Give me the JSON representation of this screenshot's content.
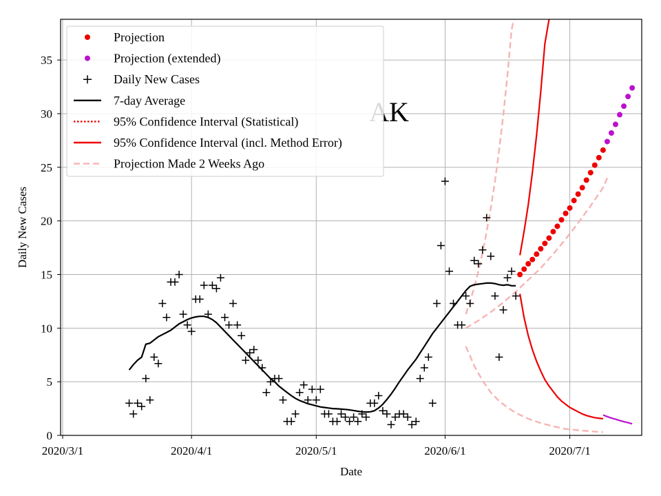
{
  "chart_data": {
    "type": "line",
    "state_label": "AK",
    "xlabel": "Date",
    "ylabel": "Daily New Cases",
    "xlim": [
      0,
      137
    ],
    "ylim": [
      0,
      38.8
    ],
    "grid": true,
    "legend_position": "top-left",
    "x_ticks": [
      {
        "value": 0,
        "label": "2020/3/1"
      },
      {
        "value": 31,
        "label": "2020/4/1"
      },
      {
        "value": 61,
        "label": "2020/5/1"
      },
      {
        "value": 92,
        "label": "2020/6/1"
      },
      {
        "value": 122,
        "label": "2020/7/1"
      }
    ],
    "y_ticks": [
      0,
      5,
      10,
      15,
      20,
      25,
      30,
      35
    ],
    "legend": [
      {
        "label": "Projection",
        "kind": "dot",
        "color": "#ee0000"
      },
      {
        "label": "Projection (extended)",
        "kind": "dot",
        "color": "#bb11cc"
      },
      {
        "label": "Daily New Cases",
        "kind": "plus",
        "color": "#000000"
      },
      {
        "label": "7-day Average",
        "kind": "line",
        "color": "#000000"
      },
      {
        "label": "95% Confidence Interval (Statistical)",
        "kind": "dotted",
        "color": "#ee0000"
      },
      {
        "label": "95% Confidence Interval (incl. Method Error)",
        "kind": "line",
        "color": "#ee0000"
      },
      {
        "label": "Projection Made 2 Weeks Ago",
        "kind": "dashed",
        "color": "#f7b3b3"
      }
    ],
    "daily_new_cases": [
      [
        16,
        3.0
      ],
      [
        17,
        2.0
      ],
      [
        18,
        3.0
      ],
      [
        19,
        2.7
      ],
      [
        20,
        5.3
      ],
      [
        21,
        3.3
      ],
      [
        22,
        7.3
      ],
      [
        23,
        6.7
      ],
      [
        24,
        12.3
      ],
      [
        25,
        11.0
      ],
      [
        26,
        14.3
      ],
      [
        27,
        14.3
      ],
      [
        28,
        15.0
      ],
      [
        29,
        11.3
      ],
      [
        30,
        10.3
      ],
      [
        31,
        9.7
      ],
      [
        32,
        12.7
      ],
      [
        33,
        12.7
      ],
      [
        34,
        14.0
      ],
      [
        35,
        11.3
      ],
      [
        36,
        14.0
      ],
      [
        37,
        13.7
      ],
      [
        38,
        14.7
      ],
      [
        39,
        11.0
      ],
      [
        40,
        10.3
      ],
      [
        41,
        12.3
      ],
      [
        42,
        10.3
      ],
      [
        43,
        9.3
      ],
      [
        44,
        7.0
      ],
      [
        45,
        7.7
      ],
      [
        46,
        8.0
      ],
      [
        47,
        7.0
      ],
      [
        48,
        6.3
      ],
      [
        49,
        4.0
      ],
      [
        50,
        5.0
      ],
      [
        51,
        5.3
      ],
      [
        52,
        5.3
      ],
      [
        53,
        3.3
      ],
      [
        54,
        1.3
      ],
      [
        55,
        1.3
      ],
      [
        56,
        2.0
      ],
      [
        57,
        4.0
      ],
      [
        58,
        4.7
      ],
      [
        59,
        3.3
      ],
      [
        60,
        4.3
      ],
      [
        61,
        3.3
      ],
      [
        62,
        4.3
      ],
      [
        63,
        2.0
      ],
      [
        64,
        2.0
      ],
      [
        65,
        1.3
      ],
      [
        66,
        1.3
      ],
      [
        67,
        2.0
      ],
      [
        68,
        1.7
      ],
      [
        69,
        1.3
      ],
      [
        70,
        1.7
      ],
      [
        71,
        1.3
      ],
      [
        72,
        2.0
      ],
      [
        73,
        1.7
      ],
      [
        74,
        3.0
      ],
      [
        75,
        3.0
      ],
      [
        76,
        3.7
      ],
      [
        77,
        2.3
      ],
      [
        78,
        2.0
      ],
      [
        79,
        1.0
      ],
      [
        80,
        1.7
      ],
      [
        81,
        2.0
      ],
      [
        82,
        2.0
      ],
      [
        83,
        1.7
      ],
      [
        84,
        1.0
      ],
      [
        85,
        1.3
      ],
      [
        86,
        5.3
      ],
      [
        87,
        6.3
      ],
      [
        88,
        7.3
      ],
      [
        89,
        3.0
      ],
      [
        90,
        12.3
      ],
      [
        91,
        17.7
      ],
      [
        92,
        23.7
      ],
      [
        93,
        15.3
      ],
      [
        94,
        12.3
      ],
      [
        95,
        10.3
      ],
      [
        96,
        10.3
      ],
      [
        97,
        13.0
      ],
      [
        98,
        12.3
      ],
      [
        99,
        16.3
      ],
      [
        100,
        16.0
      ],
      [
        101,
        17.3
      ],
      [
        102,
        20.3
      ],
      [
        103,
        16.7
      ],
      [
        104,
        13.0
      ],
      [
        105,
        7.3
      ],
      [
        106,
        11.7
      ],
      [
        107,
        14.7
      ],
      [
        108,
        15.3
      ],
      [
        109,
        13.0
      ]
    ],
    "seven_day_average": [
      [
        16,
        6.1
      ],
      [
        17,
        6.6
      ],
      [
        18,
        7.0
      ],
      [
        19,
        7.3
      ],
      [
        20,
        8.5
      ],
      [
        21,
        8.6
      ],
      [
        22,
        8.9
      ],
      [
        23,
        9.2
      ],
      [
        24,
        9.4
      ],
      [
        25,
        9.6
      ],
      [
        26,
        9.8
      ],
      [
        27,
        10.1
      ],
      [
        28,
        10.4
      ],
      [
        29,
        10.6
      ],
      [
        30,
        10.8
      ],
      [
        31,
        10.95
      ],
      [
        32,
        11.05
      ],
      [
        33,
        11.1
      ],
      [
        34,
        11.1
      ],
      [
        35,
        11.0
      ],
      [
        36,
        10.8
      ],
      [
        37,
        10.5
      ],
      [
        38,
        10.1
      ],
      [
        39,
        9.7
      ],
      [
        40,
        9.3
      ],
      [
        41,
        8.9
      ],
      [
        42,
        8.5
      ],
      [
        43,
        8.1
      ],
      [
        44,
        7.7
      ],
      [
        45,
        7.3
      ],
      [
        46,
        6.9
      ],
      [
        47,
        6.5
      ],
      [
        48,
        6.1
      ],
      [
        49,
        5.7
      ],
      [
        50,
        5.3
      ],
      [
        51,
        5.0
      ],
      [
        52,
        4.6
      ],
      [
        53,
        4.3
      ],
      [
        54,
        4.0
      ],
      [
        55,
        3.7
      ],
      [
        56,
        3.45
      ],
      [
        57,
        3.25
      ],
      [
        58,
        3.1
      ],
      [
        59,
        2.95
      ],
      [
        60,
        2.85
      ],
      [
        61,
        2.75
      ],
      [
        62,
        2.65
      ],
      [
        63,
        2.6
      ],
      [
        64,
        2.55
      ],
      [
        65,
        2.5
      ],
      [
        66,
        2.48
      ],
      [
        67,
        2.45
      ],
      [
        68,
        2.42
      ],
      [
        69,
        2.38
      ],
      [
        70,
        2.32
      ],
      [
        71,
        2.25
      ],
      [
        72,
        2.2
      ],
      [
        73,
        2.18
      ],
      [
        74,
        2.2
      ],
      [
        75,
        2.3
      ],
      [
        76,
        2.55
      ],
      [
        77,
        2.9
      ],
      [
        78,
        3.35
      ],
      [
        79,
        3.85
      ],
      [
        80,
        4.4
      ],
      [
        81,
        5.0
      ],
      [
        82,
        5.55
      ],
      [
        83,
        6.1
      ],
      [
        84,
        6.6
      ],
      [
        85,
        7.1
      ],
      [
        86,
        7.7
      ],
      [
        87,
        8.3
      ],
      [
        88,
        8.9
      ],
      [
        89,
        9.5
      ],
      [
        90,
        10.0
      ],
      [
        91,
        10.5
      ],
      [
        92,
        11.0
      ],
      [
        93,
        11.5
      ],
      [
        94,
        12.0
      ],
      [
        95,
        12.5
      ],
      [
        96,
        13.0
      ],
      [
        97,
        13.5
      ],
      [
        98,
        13.9
      ],
      [
        99,
        14.05
      ],
      [
        100,
        14.1
      ],
      [
        101,
        14.15
      ],
      [
        102,
        14.2
      ],
      [
        103,
        14.2
      ],
      [
        104,
        14.15
      ],
      [
        105,
        14.05
      ],
      [
        106,
        14.0
      ],
      [
        107,
        14.05
      ],
      [
        108,
        13.95
      ],
      [
        109,
        13.95
      ]
    ],
    "projection": [
      [
        110,
        15.0
      ],
      [
        111,
        15.5
      ],
      [
        112,
        16.0
      ],
      [
        113,
        16.4
      ],
      [
        114,
        16.9
      ],
      [
        115,
        17.4
      ],
      [
        116,
        17.9
      ],
      [
        117,
        18.4
      ],
      [
        118,
        19.0
      ],
      [
        119,
        19.5
      ],
      [
        120,
        20.1
      ],
      [
        121,
        20.7
      ],
      [
        122,
        21.2
      ],
      [
        123,
        21.9
      ],
      [
        124,
        22.5
      ],
      [
        125,
        23.1
      ],
      [
        126,
        23.8
      ],
      [
        127,
        24.5
      ],
      [
        128,
        25.2
      ],
      [
        129,
        25.9
      ],
      [
        130,
        26.6
      ]
    ],
    "projection_extended": [
      [
        131,
        27.4
      ],
      [
        132,
        28.2
      ],
      [
        133,
        29.0
      ],
      [
        134,
        29.9
      ],
      [
        135,
        30.7
      ],
      [
        136,
        31.6
      ],
      [
        137,
        32.4
      ]
    ],
    "ci_method_upper": [
      [
        110,
        16.8
      ],
      [
        111,
        19.0
      ],
      [
        112,
        21.5
      ],
      [
        113,
        24.5
      ],
      [
        114,
        28.0
      ],
      [
        115,
        32.0
      ],
      [
        116,
        36.5
      ],
      [
        117,
        41.0
      ]
    ],
    "ci_method_lower": [
      [
        110,
        13.2
      ],
      [
        111,
        11.0
      ],
      [
        112,
        9.3
      ],
      [
        113,
        8.0
      ],
      [
        114,
        6.9
      ],
      [
        115,
        6.0
      ],
      [
        116,
        5.2
      ],
      [
        117,
        4.6
      ],
      [
        118,
        4.1
      ],
      [
        119,
        3.6
      ],
      [
        120,
        3.2
      ],
      [
        121,
        2.9
      ],
      [
        122,
        2.6
      ],
      [
        123,
        2.4
      ],
      [
        124,
        2.2
      ],
      [
        125,
        2.0
      ],
      [
        126,
        1.85
      ],
      [
        127,
        1.75
      ],
      [
        128,
        1.65
      ],
      [
        129,
        1.6
      ],
      [
        130,
        1.55
      ]
    ],
    "ci_method_lower_extended": [
      [
        130,
        1.9
      ],
      [
        131,
        1.75
      ],
      [
        132,
        1.62
      ],
      [
        133,
        1.5
      ],
      [
        134,
        1.39
      ],
      [
        135,
        1.28
      ],
      [
        136,
        1.18
      ],
      [
        137,
        1.08
      ]
    ],
    "two_weeks_ago_center": [
      [
        97,
        10.0
      ],
      [
        100,
        10.7
      ],
      [
        103,
        11.5
      ],
      [
        106,
        12.4
      ],
      [
        109,
        13.4
      ],
      [
        112,
        14.5
      ],
      [
        115,
        15.6
      ],
      [
        118,
        16.9
      ],
      [
        121,
        18.3
      ],
      [
        124,
        19.8
      ],
      [
        127,
        21.4
      ],
      [
        130,
        23.1
      ],
      [
        131,
        24.0
      ]
    ],
    "two_weeks_ago_upper": [
      [
        97,
        11.3
      ],
      [
        98,
        12.5
      ],
      [
        99,
        13.8
      ],
      [
        100,
        15.3
      ],
      [
        101,
        17.0
      ],
      [
        102,
        19.0
      ],
      [
        103,
        21.2
      ],
      [
        104,
        23.7
      ],
      [
        105,
        26.6
      ],
      [
        106,
        29.9
      ],
      [
        107,
        33.6
      ],
      [
        108,
        37.8
      ],
      [
        108.5,
        38.8
      ]
    ],
    "two_weeks_ago_lower": [
      [
        97,
        8.3
      ],
      [
        99,
        6.5
      ],
      [
        101,
        5.1
      ],
      [
        103,
        4.0
      ],
      [
        105,
        3.2
      ],
      [
        107,
        2.6
      ],
      [
        109,
        2.1
      ],
      [
        112,
        1.55
      ],
      [
        115,
        1.15
      ],
      [
        118,
        0.85
      ],
      [
        121,
        0.6
      ],
      [
        124,
        0.48
      ],
      [
        127,
        0.38
      ],
      [
        130,
        0.3
      ]
    ],
    "two_weeks_ago_upper_lowband": [
      [
        97,
        11.0
      ],
      [
        98,
        12.5
      ],
      [
        99,
        13.5
      ],
      [
        100,
        14.3
      ]
    ]
  }
}
